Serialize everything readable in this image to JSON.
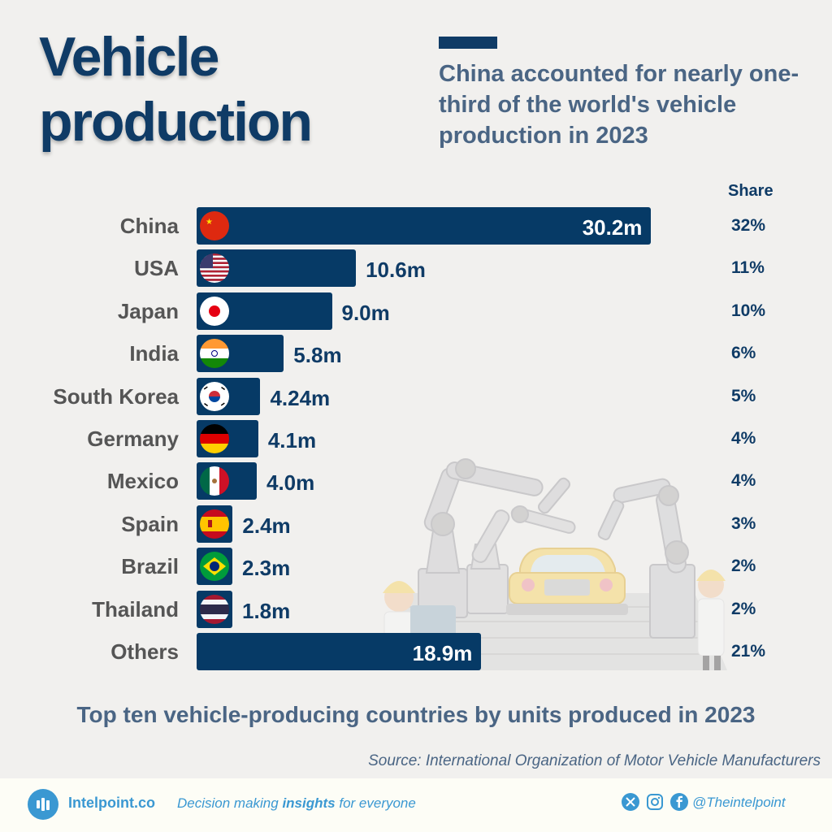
{
  "header": {
    "title_line1": "Vehicle",
    "title_line2": "production",
    "subtitle": "China accounted for nearly one-third of the world's vehicle production in 2023",
    "share_header": "Share"
  },
  "chart_data": {
    "type": "bar",
    "orientation": "horizontal",
    "title": "Top ten vehicle-producing countries by units produced in 2023",
    "xlabel": "",
    "ylabel": "",
    "unit": "million units",
    "categories": [
      "China",
      "USA",
      "Japan",
      "India",
      "South Korea",
      "Germany",
      "Mexico",
      "Spain",
      "Brazil",
      "Thailand",
      "Others"
    ],
    "values": [
      30.2,
      10.6,
      9.0,
      5.8,
      4.24,
      4.1,
      4.0,
      2.4,
      2.3,
      1.8,
      18.9
    ],
    "value_labels": [
      "30.2m",
      "10.6m",
      "9.0m",
      "5.8m",
      "4.24m",
      "4.1m",
      "4.0m",
      "2.4m",
      "2.3m",
      "1.8m",
      "18.9m"
    ],
    "shares": [
      "32%",
      "11%",
      "10%",
      "6%",
      "5%",
      "4%",
      "4%",
      "3%",
      "2%",
      "2%",
      "21%"
    ],
    "flags": [
      "china",
      "usa",
      "japan",
      "india",
      "south-korea",
      "germany",
      "mexico",
      "spain",
      "brazil",
      "thailand",
      null
    ],
    "bar_color": "#063a66",
    "grid": false,
    "legend": "none"
  },
  "caption": "Top ten vehicle-producing countries by units produced in 2023",
  "source": "Source: International Organization of Motor Vehicle Manufacturers",
  "footer": {
    "brand": "Intelpoint.co",
    "tagline_pre": "Decision making ",
    "tagline_bold": "insights",
    "tagline_post": " for everyone",
    "handle": "@Theintelpoint",
    "social_icons": [
      "x-icon",
      "instagram-icon",
      "facebook-icon"
    ],
    "accent_color": "#3a98d2"
  },
  "colors": {
    "title": "#0f3b66",
    "subtitle": "#4a6584",
    "background": "#f1f0ee"
  }
}
